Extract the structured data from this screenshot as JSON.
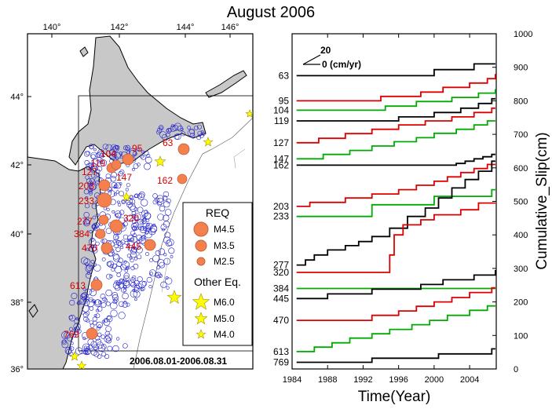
{
  "title": "August 2006",
  "map": {
    "lon_ticks": [
      "140°",
      "142°",
      "144°",
      "146°"
    ],
    "lat_ticks": [
      "44°",
      "42°",
      "40°",
      "38°",
      "36°"
    ],
    "date_range": "2006.08.01-2006.08.31",
    "repeater_labels": [
      "95",
      "104",
      "63",
      "119",
      "127",
      "147",
      "162",
      "203",
      "233",
      "277",
      "320",
      "384",
      "470",
      "445",
      "613",
      "769"
    ],
    "legend": {
      "req_title": "REQ",
      "req_items": [
        "M4.5",
        "M3.5",
        "M2.5"
      ],
      "other_title": "Other Eq.",
      "other_items": [
        "M6.0",
        "M5.0",
        "M4.0"
      ]
    },
    "colors": {
      "land": "#c8c8c8",
      "repeater": "#f4804e",
      "other_eq": "#ffff00",
      "background_eq": "#2020cc"
    }
  },
  "chart_data": {
    "type": "line",
    "step": true,
    "xlabel": "Time(Year)",
    "ylabel": "Cumulative_Slip(cm)",
    "xlim": [
      1984,
      2007
    ],
    "ylim": [
      0,
      1000
    ],
    "x_ticks": [
      1984,
      1988,
      1992,
      1996,
      2000,
      2004
    ],
    "y_ticks": [
      0,
      100,
      200,
      300,
      400,
      500,
      600,
      700,
      800,
      900,
      1000
    ],
    "scale_bar": {
      "value": "20",
      "zero_label": "0 (cm/yr)"
    },
    "series": [
      {
        "name": "63",
        "color": "#000000",
        "x": [
          1984.5,
          2000.0,
          2004.5,
          2006.9
        ],
        "y": [
          875,
          893,
          910,
          910
        ]
      },
      {
        "name": "95",
        "color": "#dd0000",
        "x": [
          1984.5,
          1994.0,
          1998.5,
          2001.0,
          2004.0,
          2006.0,
          2006.9
        ],
        "y": [
          800,
          813,
          826,
          840,
          853,
          866,
          880
        ]
      },
      {
        "name": "104",
        "color": "#00aa00",
        "x": [
          1984.5,
          1994.5,
          1998.0,
          2002.0,
          2005.0,
          2006.9
        ],
        "y": [
          772,
          784,
          798,
          810,
          823,
          835
        ]
      },
      {
        "name": "119",
        "color": "#000000",
        "x": [
          1984.5,
          1996.0,
          2000.0,
          2003.0,
          2005.0,
          2006.5,
          2006.9
        ],
        "y": [
          740,
          752,
          765,
          778,
          792,
          806,
          806
        ]
      },
      {
        "name": "127",
        "color": "#dd0000",
        "x": [
          1984.5,
          1987.0,
          1990.0,
          1993.0,
          1996.0,
          1999.0,
          2002.0,
          2004.5,
          2006.5,
          2006.9
        ],
        "y": [
          675,
          688,
          702,
          715,
          728,
          740,
          752,
          765,
          778,
          778
        ]
      },
      {
        "name": "147",
        "color": "#00aa00",
        "x": [
          1984.5,
          1987.5,
          1990.5,
          1993.0,
          1995.5,
          1998.0,
          2000.0,
          2002.5,
          2004.5,
          2006.0,
          2006.9
        ],
        "y": [
          627,
          640,
          652,
          665,
          678,
          690,
          703,
          715,
          728,
          740,
          740
        ]
      },
      {
        "name": "162",
        "color": "#000000",
        "x": [
          1984.5,
          2001.0,
          2002.5,
          2003.5,
          2004.5,
          2005.5,
          2006.5,
          2006.9
        ],
        "y": [
          608,
          608,
          613,
          620,
          627,
          633,
          640,
          640
        ]
      },
      {
        "name": "203",
        "color": "#dd0000",
        "x": [
          1984.5,
          1986.0,
          1990.0,
          1993.0,
          1996.0,
          1998.0,
          2000.0,
          2001.5,
          2003.0,
          2004.5,
          2006.0,
          2006.9
        ],
        "y": [
          485,
          497,
          510,
          522,
          535,
          548,
          560,
          573,
          586,
          598,
          610,
          610
        ]
      },
      {
        "name": "233",
        "color": "#00aa00",
        "x": [
          1984.5,
          1993.0,
          2000.0,
          2006.5,
          2006.9
        ],
        "y": [
          455,
          490,
          515,
          535,
          535
        ]
      },
      {
        "name": "277",
        "color": "#000000",
        "x": [
          1984.5,
          1985.5,
          1986.5,
          1988.0,
          1990.0,
          1991.5,
          1993.0,
          1995.0,
          1997.0,
          1999.0,
          2000.5,
          2002.0,
          2003.5,
          2005.0,
          2006.5,
          2006.9
        ],
        "y": [
          310,
          325,
          340,
          355,
          368,
          380,
          395,
          420,
          455,
          480,
          510,
          540,
          565,
          590,
          620,
          620
        ]
      },
      {
        "name": "320",
        "color": "#dd0000",
        "x": [
          1984.5,
          1994.0,
          1995.0,
          1995.5,
          1996.5,
          1998.5,
          2000.0,
          2003.0,
          2005.0,
          2006.9
        ],
        "y": [
          288,
          288,
          340,
          400,
          430,
          445,
          460,
          475,
          495,
          495
        ]
      },
      {
        "name": "384",
        "color": "#00aa00",
        "x": [
          1984.5,
          2006.5,
          2006.9
        ],
        "y": [
          240,
          240,
          240
        ]
      },
      {
        "name": "445",
        "color": "#000000",
        "x": [
          1984.5,
          1988.0,
          1993.0,
          1998.5,
          2001.0,
          2004.5,
          2006.9
        ],
        "y": [
          210,
          224,
          238,
          252,
          266,
          280,
          295
        ]
      },
      {
        "name": "470",
        "color": "#dd0000",
        "x": [
          1984.5,
          1993.0,
          1996.0,
          1998.0,
          2000.0,
          2002.0,
          2004.0,
          2006.5,
          2006.9
        ],
        "y": [
          145,
          160,
          173,
          187,
          200,
          213,
          228,
          242,
          242
        ]
      },
      {
        "name": "613",
        "color": "#00aa00",
        "x": [
          1984.5,
          1986.5,
          1988.5,
          1990.5,
          1993.0,
          1995.0,
          1997.5,
          1999.5,
          2001.5,
          2004.0,
          2006.0,
          2006.9
        ],
        "y": [
          52,
          65,
          78,
          92,
          105,
          118,
          132,
          145,
          160,
          175,
          188,
          188
        ]
      },
      {
        "name": "769",
        "color": "#000000",
        "x": [
          1984.5,
          1993.0,
          2000.5,
          2006.5,
          2006.9
        ],
        "y": [
          20,
          32,
          45,
          60,
          60
        ]
      }
    ]
  }
}
